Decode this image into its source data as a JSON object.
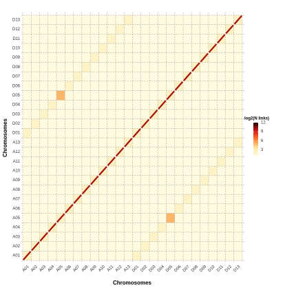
{
  "chart_data": {
    "type": "heatmap",
    "x_label": "Chromosomes",
    "y_label": "Chromosomes",
    "categories": [
      "A01",
      "A02",
      "A03",
      "A04",
      "A05",
      "A06",
      "A07",
      "A08",
      "A09",
      "A10",
      "A11",
      "A12",
      "A13",
      "D01",
      "D02",
      "D03",
      "D04",
      "D05",
      "D06",
      "D07",
      "D08",
      "D09",
      "D10",
      "D11",
      "D12",
      "D13"
    ],
    "z": [
      [
        10,
        1,
        1,
        1,
        1,
        1,
        1,
        1,
        1,
        1,
        1,
        1,
        1,
        2,
        1,
        1,
        1,
        1,
        1,
        1,
        1,
        1,
        1,
        1,
        1,
        1
      ],
      [
        1,
        10,
        1,
        1,
        1,
        1,
        1,
        1,
        1,
        1,
        1,
        1,
        1,
        1,
        2,
        1,
        1,
        1,
        1,
        1,
        1,
        1,
        1,
        1,
        1,
        1
      ],
      [
        1,
        1,
        10,
        1,
        1,
        1,
        1,
        1,
        1,
        1,
        1,
        1,
        1,
        1,
        1,
        2,
        1,
        1,
        1,
        1,
        1,
        1,
        1,
        1,
        1,
        1
      ],
      [
        1,
        1,
        1,
        10,
        1,
        1,
        1,
        1,
        1,
        1,
        1,
        1,
        1,
        1,
        1,
        1,
        2,
        1,
        1,
        1,
        1,
        1,
        1,
        1,
        1,
        1
      ],
      [
        1,
        1,
        1,
        1,
        10,
        1,
        1,
        1,
        1,
        1,
        1,
        1,
        1,
        1,
        1,
        1,
        1,
        5,
        1,
        1,
        1,
        1,
        1,
        1,
        1,
        1
      ],
      [
        1,
        1,
        1,
        1,
        1,
        10,
        1,
        1,
        1,
        1,
        1,
        1,
        1,
        1,
        1,
        1,
        1,
        1,
        2,
        1,
        1,
        1,
        1,
        1,
        1,
        1
      ],
      [
        1,
        1,
        1,
        1,
        1,
        1,
        10,
        1,
        1,
        1,
        1,
        1,
        1,
        1,
        1,
        1,
        1,
        1,
        1,
        2,
        1,
        1,
        1,
        1,
        1,
        1
      ],
      [
        1,
        1,
        1,
        1,
        1,
        1,
        1,
        10,
        1,
        1,
        1,
        1,
        1,
        1,
        1,
        1,
        1,
        1,
        1,
        1,
        2,
        1,
        1,
        1,
        1,
        1
      ],
      [
        1,
        1,
        1,
        1,
        1,
        1,
        1,
        1,
        10,
        1,
        1,
        1,
        1,
        1,
        1,
        1,
        1,
        1,
        1,
        1,
        1,
        2,
        1,
        1,
        1,
        1
      ],
      [
        1,
        1,
        1,
        1,
        1,
        1,
        1,
        1,
        1,
        10,
        1,
        1,
        1,
        1,
        1,
        1,
        1,
        1,
        1,
        1,
        1,
        1,
        2,
        1,
        1,
        1
      ],
      [
        1,
        1,
        1,
        1,
        1,
        1,
        1,
        1,
        1,
        1,
        10,
        1,
        1,
        1,
        1,
        1,
        1,
        1,
        1,
        1,
        1,
        1,
        1,
        2,
        1,
        1
      ],
      [
        1,
        1,
        1,
        1,
        1,
        1,
        1,
        1,
        1,
        1,
        1,
        10,
        1,
        1,
        1,
        1,
        1,
        1,
        1,
        1,
        1,
        1,
        1,
        1,
        2,
        1
      ],
      [
        1,
        1,
        1,
        1,
        1,
        1,
        1,
        1,
        1,
        1,
        1,
        1,
        10,
        1,
        1,
        1,
        1,
        1,
        1,
        1,
        1,
        1,
        1,
        1,
        1,
        2
      ],
      [
        2,
        1,
        1,
        1,
        1,
        1,
        1,
        1,
        1,
        1,
        1,
        1,
        1,
        10,
        1,
        1,
        1,
        1,
        1,
        1,
        1,
        1,
        1,
        1,
        1,
        1
      ],
      [
        1,
        2,
        1,
        1,
        1,
        1,
        1,
        1,
        1,
        1,
        1,
        1,
        1,
        1,
        10,
        1,
        1,
        1,
        1,
        1,
        1,
        1,
        1,
        1,
        1,
        1
      ],
      [
        1,
        1,
        2,
        1,
        1,
        1,
        1,
        1,
        1,
        1,
        1,
        1,
        1,
        1,
        1,
        10,
        1,
        1,
        1,
        1,
        1,
        1,
        1,
        1,
        1,
        1
      ],
      [
        1,
        1,
        1,
        2,
        1,
        1,
        1,
        1,
        1,
        1,
        1,
        1,
        1,
        1,
        1,
        1,
        10,
        1,
        1,
        1,
        1,
        1,
        1,
        1,
        1,
        1
      ],
      [
        1,
        1,
        1,
        1,
        5,
        1,
        1,
        1,
        1,
        1,
        1,
        1,
        1,
        1,
        1,
        1,
        1,
        10,
        1,
        1,
        1,
        1,
        1,
        1,
        1,
        1
      ],
      [
        1,
        1,
        1,
        1,
        1,
        2,
        1,
        1,
        1,
        1,
        1,
        1,
        1,
        1,
        1,
        1,
        1,
        1,
        10,
        1,
        1,
        1,
        1,
        1,
        1,
        1
      ],
      [
        1,
        1,
        1,
        1,
        1,
        1,
        2,
        1,
        1,
        1,
        1,
        1,
        1,
        1,
        1,
        1,
        1,
        1,
        1,
        10,
        1,
        1,
        1,
        1,
        1,
        1
      ],
      [
        1,
        1,
        1,
        1,
        1,
        1,
        1,
        2,
        1,
        1,
        1,
        1,
        1,
        1,
        1,
        1,
        1,
        1,
        1,
        1,
        10,
        1,
        1,
        1,
        1,
        1
      ],
      [
        1,
        1,
        1,
        1,
        1,
        1,
        1,
        1,
        2,
        1,
        1,
        1,
        1,
        1,
        1,
        1,
        1,
        1,
        1,
        1,
        1,
        10,
        1,
        1,
        1,
        1
      ],
      [
        1,
        1,
        1,
        1,
        1,
        1,
        1,
        1,
        1,
        2,
        1,
        1,
        1,
        1,
        1,
        1,
        1,
        1,
        1,
        1,
        1,
        1,
        10,
        1,
        1,
        1
      ],
      [
        1,
        1,
        1,
        1,
        1,
        1,
        1,
        1,
        1,
        1,
        2,
        1,
        1,
        1,
        1,
        1,
        1,
        1,
        1,
        1,
        1,
        1,
        1,
        10,
        1,
        1
      ],
      [
        1,
        1,
        1,
        1,
        1,
        1,
        1,
        1,
        1,
        1,
        1,
        2,
        1,
        1,
        1,
        1,
        1,
        1,
        1,
        1,
        1,
        1,
        1,
        1,
        10,
        1
      ],
      [
        1,
        1,
        1,
        1,
        1,
        1,
        1,
        1,
        1,
        1,
        1,
        1,
        2,
        1,
        1,
        1,
        1,
        1,
        1,
        1,
        1,
        1,
        1,
        1,
        1,
        10
      ]
    ],
    "legend_title": "log2(N links)",
    "zlim": [
      1,
      12
    ],
    "zticks": [
      3,
      6,
      9,
      12
    ],
    "colors": [
      "#fffbe0",
      "#fde59a",
      "#fb7d2f",
      "#d7191c",
      "#200000"
    ]
  }
}
